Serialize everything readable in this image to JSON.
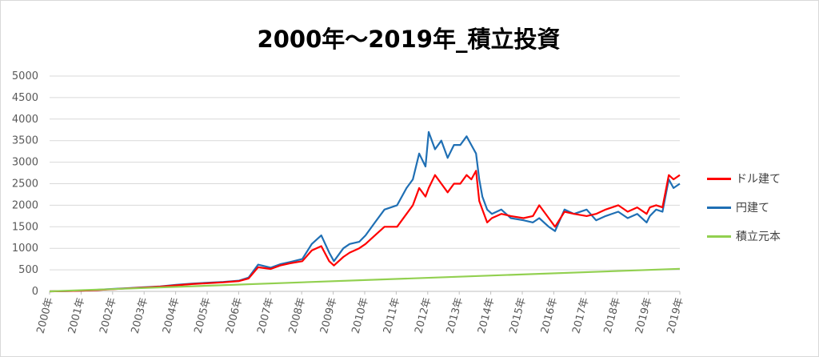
{
  "title": "2000年〜2019年_積立投資",
  "chart_data": {
    "type": "line",
    "title": "2000年〜2019年_積立投資",
    "xlabel": "",
    "ylabel": "",
    "xlim": [
      2000,
      2019.95
    ],
    "ylim": [
      0,
      5000
    ],
    "y_ticks": [
      0,
      500,
      1000,
      1500,
      2000,
      2500,
      3000,
      3500,
      4000,
      4500,
      5000
    ],
    "x_tick_labels": [
      "2000年",
      "2001年",
      "2002年",
      "2003年",
      "2004年",
      "2005年",
      "2006年",
      "2007年",
      "2008年",
      "2009年",
      "2010年",
      "2011年",
      "2012年",
      "2013年",
      "2014年",
      "2015年",
      "2016年",
      "2017年",
      "2018年",
      "2019年",
      "2019年"
    ],
    "grid": true,
    "legend_position": "right",
    "series": [
      {
        "name": "ドル建て",
        "color": "#ff0000",
        "x": [
          2000.0,
          2000.5,
          2001.0,
          2001.5,
          2002.0,
          2002.5,
          2003.0,
          2003.5,
          2004.0,
          2004.5,
          2005.0,
          2005.5,
          2006.0,
          2006.3,
          2006.6,
          2007.0,
          2007.3,
          2007.6,
          2008.0,
          2008.3,
          2008.6,
          2008.85,
          2009.0,
          2009.3,
          2009.5,
          2009.8,
          2010.0,
          2010.3,
          2010.6,
          2011.0,
          2011.3,
          2011.5,
          2011.7,
          2011.9,
          2012.0,
          2012.2,
          2012.4,
          2012.6,
          2012.8,
          2013.0,
          2013.2,
          2013.35,
          2013.5,
          2013.6,
          2013.7,
          2013.85,
          2014.0,
          2014.3,
          2014.6,
          2015.0,
          2015.3,
          2015.5,
          2015.8,
          2016.0,
          2016.3,
          2016.6,
          2017.0,
          2017.3,
          2017.6,
          2018.0,
          2018.3,
          2018.6,
          2018.9,
          2019.0,
          2019.2,
          2019.4,
          2019.6,
          2019.75,
          2019.95
        ],
        "values": [
          0,
          5,
          15,
          30,
          50,
          70,
          90,
          110,
          140,
          170,
          190,
          210,
          240,
          300,
          560,
          520,
          600,
          650,
          700,
          950,
          1050,
          700,
          600,
          800,
          900,
          1000,
          1100,
          1300,
          1500,
          1500,
          1800,
          2000,
          2400,
          2200,
          2400,
          2700,
          2500,
          2300,
          2500,
          2500,
          2700,
          2600,
          2800,
          2100,
          1900,
          1600,
          1700,
          1800,
          1750,
          1700,
          1750,
          2000,
          1700,
          1500,
          1850,
          1800,
          1750,
          1800,
          1900,
          2000,
          1850,
          1950,
          1800,
          1950,
          2000,
          1950,
          2700,
          2600,
          2700
        ]
      },
      {
        "name": "円建て",
        "color": "#1f6fb4",
        "x": [
          2000.0,
          2000.5,
          2001.0,
          2001.5,
          2002.0,
          2002.5,
          2003.0,
          2003.5,
          2004.0,
          2004.5,
          2005.0,
          2005.5,
          2006.0,
          2006.3,
          2006.6,
          2007.0,
          2007.3,
          2007.6,
          2008.0,
          2008.3,
          2008.6,
          2008.85,
          2009.0,
          2009.3,
          2009.5,
          2009.8,
          2010.0,
          2010.3,
          2010.6,
          2011.0,
          2011.3,
          2011.5,
          2011.7,
          2011.9,
          2012.0,
          2012.2,
          2012.4,
          2012.6,
          2012.8,
          2013.0,
          2013.2,
          2013.35,
          2013.5,
          2013.6,
          2013.7,
          2013.85,
          2014.0,
          2014.3,
          2014.6,
          2015.0,
          2015.3,
          2015.5,
          2015.8,
          2016.0,
          2016.3,
          2016.6,
          2017.0,
          2017.3,
          2017.6,
          2018.0,
          2018.3,
          2018.6,
          2018.9,
          2019.0,
          2019.2,
          2019.4,
          2019.6,
          2019.75,
          2019.95
        ],
        "values": [
          0,
          5,
          15,
          35,
          55,
          75,
          95,
          115,
          150,
          180,
          200,
          220,
          250,
          320,
          620,
          550,
          630,
          680,
          750,
          1100,
          1300,
          900,
          700,
          1000,
          1100,
          1150,
          1300,
          1600,
          1900,
          2000,
          2400,
          2600,
          3200,
          2900,
          3700,
          3300,
          3500,
          3100,
          3400,
          3400,
          3600,
          3400,
          3200,
          2600,
          2200,
          1900,
          1800,
          1900,
          1700,
          1650,
          1600,
          1700,
          1500,
          1400,
          1900,
          1800,
          1900,
          1650,
          1750,
          1850,
          1700,
          1800,
          1600,
          1750,
          1900,
          1850,
          2600,
          2400,
          2500
        ]
      },
      {
        "name": "積立元本",
        "color": "#92d050",
        "x": [
          2000.0,
          2019.95
        ],
        "values": [
          0,
          525
        ]
      }
    ]
  }
}
